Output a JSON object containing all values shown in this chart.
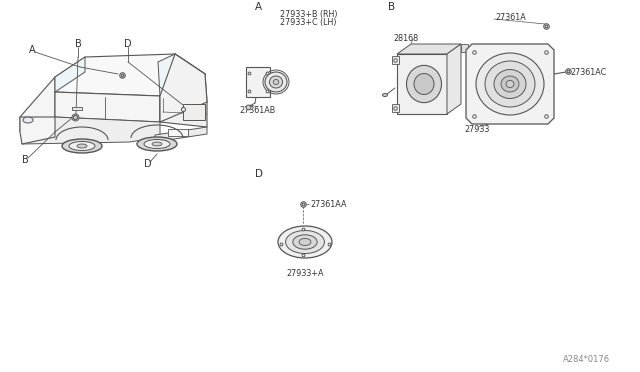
{
  "bg_color": "#ffffff",
  "lc": "#555555",
  "tc": "#333333",
  "fig_width": 6.4,
  "fig_height": 3.72,
  "dpi": 100,
  "watermark": "A284*0176",
  "car_label_A": "A",
  "car_label_B": "B",
  "car_label_D": "D",
  "sec_A": "A",
  "sec_B": "B",
  "sec_D": "D",
  "p1": "27933+B (RH)",
  "p2": "27933+C (LH)",
  "p3": "27361AB",
  "p4": "27361A",
  "p5": "28168",
  "p6": "27361AC",
  "p7": "27933",
  "p8": "27361AA",
  "p9": "27933+A"
}
